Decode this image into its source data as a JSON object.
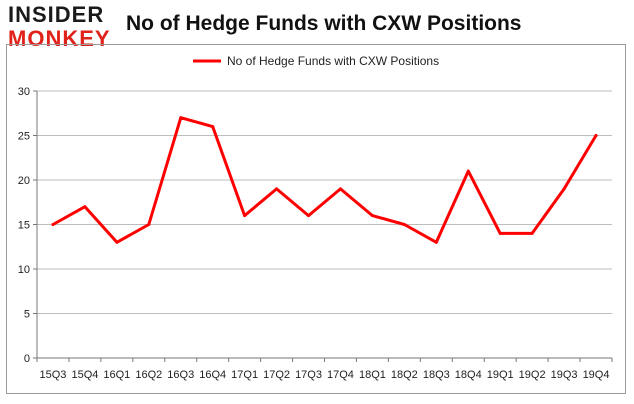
{
  "brand": {
    "line1": "INSIDER",
    "line2": "MONKEY"
  },
  "chart_data": {
    "type": "line",
    "title": "No of Hedge Funds with CXW Positions",
    "xlabel": "",
    "ylabel": "",
    "categories": [
      "15Q3",
      "15Q4",
      "16Q1",
      "16Q2",
      "16Q3",
      "16Q4",
      "17Q1",
      "17Q2",
      "17Q3",
      "17Q4",
      "18Q1",
      "18Q2",
      "18Q3",
      "18Q4",
      "19Q1",
      "19Q2",
      "19Q3",
      "19Q4"
    ],
    "series": [
      {
        "name": "No of Hedge Funds with CXW Positions",
        "values": [
          15,
          17,
          13,
          15,
          27,
          26,
          16,
          19,
          16,
          19,
          16,
          15,
          13,
          21,
          14,
          14,
          19,
          25
        ],
        "color": "#ff0000"
      }
    ],
    "ylim": [
      0,
      30
    ],
    "yticks": [
      0,
      5,
      10,
      15,
      20,
      25,
      30
    ],
    "grid": true,
    "legend": "top-center"
  }
}
